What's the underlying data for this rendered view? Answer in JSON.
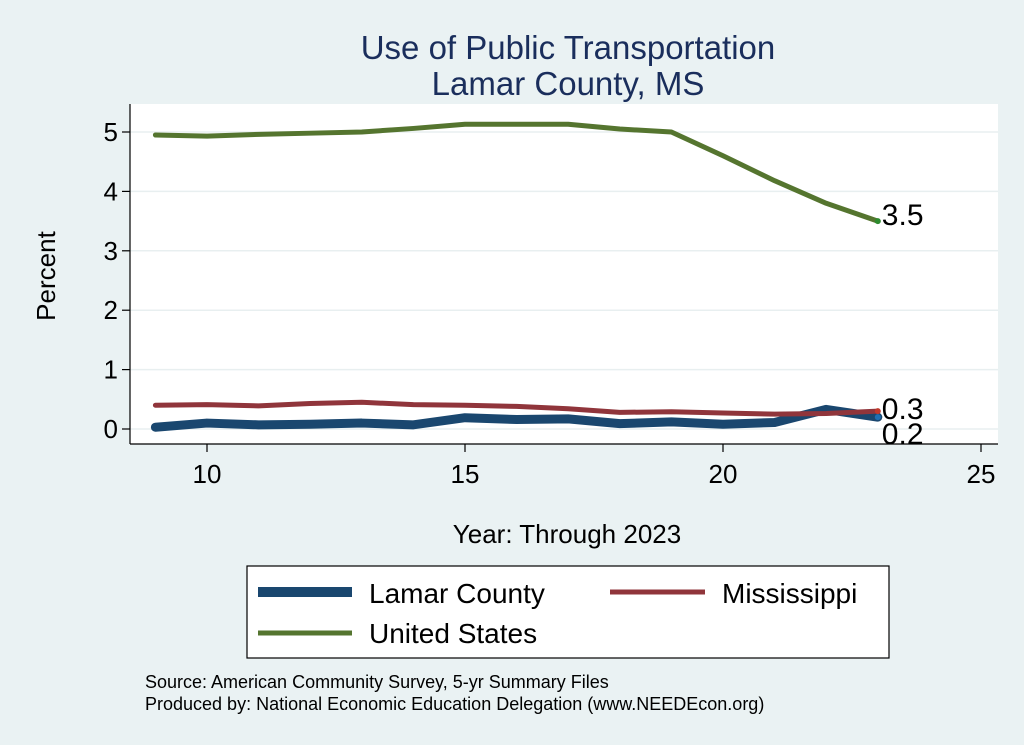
{
  "chart_data": {
    "type": "line",
    "title": [
      "Use of Public Transportation",
      "Lamar County, MS"
    ],
    "xlabel": "Year: Through 2023",
    "ylabel": "Percent",
    "xlim": [
      9,
      25
    ],
    "ylim": [
      0,
      5
    ],
    "xticks": [
      "10",
      "15",
      "20",
      "25"
    ],
    "yticks": [
      "0",
      "1",
      "2",
      "3",
      "4",
      "5"
    ],
    "grid": true,
    "legend_position": "bottom",
    "x": [
      9,
      10,
      11,
      12,
      13,
      14,
      15,
      16,
      17,
      18,
      19,
      20,
      21,
      22,
      23
    ],
    "series": [
      {
        "name": "Lamar County",
        "color": "#1a476f",
        "values": [
          0.03,
          0.1,
          0.07,
          0.08,
          0.1,
          0.07,
          0.19,
          0.16,
          0.17,
          0.09,
          0.12,
          0.08,
          0.11,
          0.33,
          0.2
        ]
      },
      {
        "name": "Mississippi",
        "color": "#90353b",
        "values": [
          0.4,
          0.41,
          0.39,
          0.43,
          0.45,
          0.41,
          0.4,
          0.38,
          0.34,
          0.28,
          0.29,
          0.27,
          0.25,
          0.26,
          0.3
        ]
      },
      {
        "name": "United States",
        "color": "#55752f",
        "values": [
          4.95,
          4.93,
          4.96,
          4.98,
          5.0,
          5.06,
          5.13,
          5.13,
          5.13,
          5.05,
          5.0,
          4.6,
          4.18,
          3.8,
          3.5
        ]
      }
    ],
    "end_labels": [
      {
        "text": "3.5",
        "series": 2
      },
      {
        "text": "0.3",
        "series": 1
      },
      {
        "text": "0.2",
        "series": 0
      }
    ],
    "legend": [
      "Lamar County",
      "Mississippi",
      "United States"
    ],
    "source": [
      "Source: American Community Survey, 5-yr Summary Files",
      "Produced by: National Economic Education Delegation (www.NEEDEcon.org)"
    ]
  }
}
